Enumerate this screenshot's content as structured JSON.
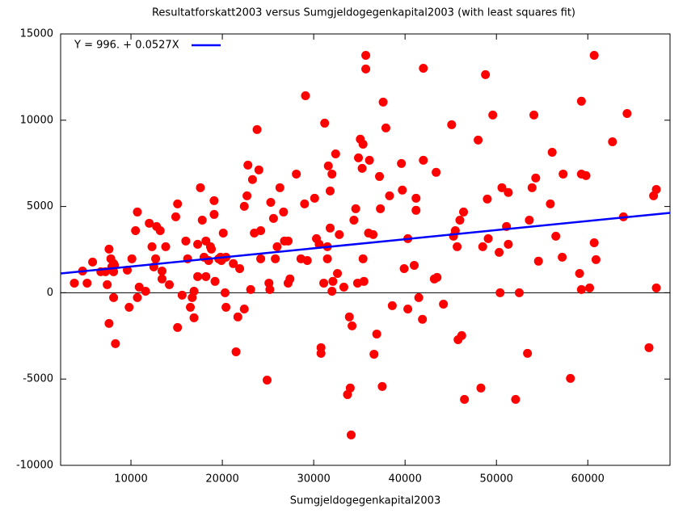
{
  "chart_data": {
    "type": "scatter",
    "title": "Resultatforskatt2003 versus Sumgjeldogegenkapital2003 (with least squares fit)",
    "x_label": "Sumgjeldogegenkapital2003",
    "color": "#ff0000",
    "x": [
      3800,
      4700,
      5200,
      5800,
      6700,
      7200,
      7400,
      7600,
      7600,
      7800,
      7900,
      8100,
      8100,
      8200,
      8300,
      8100,
      9600,
      9800,
      10100,
      10500,
      10700,
      10900,
      10700,
      11600,
      12000,
      12300,
      12500,
      12700,
      12800,
      13200,
      13400,
      13400,
      13800,
      14200,
      14900,
      15100,
      15100,
      15600,
      16000,
      16200,
      16500,
      16700,
      16900,
      16900,
      17300,
      17300,
      17600,
      17800,
      18000,
      18200,
      18200,
      18500,
      18700,
      18800,
      19100,
      19100,
      19200,
      19600,
      19800,
      19900,
      20100,
      20300,
      20400,
      20400,
      21200,
      21500,
      21700,
      21900,
      22400,
      22400,
      22700,
      22800,
      23100,
      23300,
      23500,
      23800,
      24000,
      24200,
      24200,
      24900,
      25100,
      25200,
      25300,
      25600,
      25800,
      26000,
      26300,
      26700,
      26800,
      27200,
      27200,
      27400,
      28100,
      28600,
      29000,
      29100,
      29300,
      30100,
      30300,
      30600,
      30800,
      30800,
      31100,
      31200,
      31500,
      31500,
      31600,
      31800,
      31800,
      32000,
      32000,
      32100,
      32400,
      32600,
      32800,
      33300,
      33700,
      33900,
      34000,
      34100,
      34200,
      34400,
      34600,
      34800,
      34900,
      35100,
      35300,
      35400,
      35400,
      35500,
      35700,
      35700,
      36000,
      36100,
      36500,
      36600,
      36900,
      37200,
      37300,
      37500,
      37600,
      37900,
      38300,
      38600,
      39600,
      39700,
      39900,
      40300,
      40300,
      41000,
      41200,
      41200,
      41500,
      41900,
      42000,
      42000,
      43200,
      43400,
      43500,
      44200,
      45100,
      45300,
      45500,
      45700,
      45800,
      46200,
      46000,
      46400,
      46500,
      48000,
      48300,
      48500,
      48800,
      49000,
      49100,
      49600,
      50300,
      50400,
      50600,
      51100,
      51300,
      51300,
      52100,
      52500,
      53400,
      53600,
      53900,
      54100,
      54300,
      54600,
      55900,
      56100,
      56500,
      57200,
      57300,
      58100,
      59100,
      59300,
      59300,
      59300,
      59800,
      60200,
      60700,
      60700,
      60900,
      62700,
      63900,
      64300,
      66700,
      67200,
      67500,
      67500
    ],
    "values": [
      560,
      1260,
      560,
      1780,
      1220,
      1220,
      470,
      2530,
      -1780,
      1970,
      1500,
      1220,
      1690,
      1590,
      -2950,
      -280,
      1310,
      -840,
      1970,
      3600,
      4680,
      330,
      -280,
      90,
      4030,
      2670,
      1500,
      1970,
      3840,
      3600,
      1260,
      800,
      2670,
      470,
      4400,
      5150,
      -2010,
      -140,
      3000,
      1970,
      -840,
      -280,
      90,
      -1450,
      940,
      2810,
      6090,
      4210,
      2060,
      3000,
      940,
      1870,
      2670,
      2530,
      5340,
      4540,
      660,
      1970,
      2060,
      1870,
      3460,
      0,
      2060,
      -840,
      1690,
      -3420,
      -1400,
      1400,
      -940,
      5010,
      5620,
      7400,
      190,
      6560,
      3460,
      9460,
      7120,
      1970,
      3600,
      -5060,
      560,
      190,
      5240,
      4310,
      1970,
      2670,
      6090,
      4680,
      3000,
      560,
      3000,
      800,
      6880,
      1970,
      5150,
      11420,
      1870,
      5480,
      3140,
      2810,
      -3180,
      -3510,
      560,
      9830,
      2670,
      1970,
      7350,
      5900,
      3750,
      6880,
      90,
      660,
      8050,
      1120,
      3370,
      330,
      -5900,
      -1400,
      -5520,
      -8240,
      -1920,
      4210,
      4870,
      560,
      7820,
      8900,
      7210,
      8610,
      1970,
      660,
      12970,
      13760,
      3460,
      7680,
      3370,
      -3560,
      -2390,
      6740,
      4870,
      -5430,
      11050,
      9550,
      5620,
      -750,
      7490,
      5950,
      1400,
      3140,
      -940,
      1590,
      5480,
      4780,
      -280,
      -1540,
      13010,
      7680,
      800,
      6980,
      890,
      -660,
      9740,
      3280,
      3600,
      2670,
      -2720,
      -2480,
      4210,
      4680,
      -6180,
      8850,
      -5520,
      2670,
      12640,
      5430,
      3140,
      10300,
      2340,
      0,
      6090,
      3840,
      5810,
      2810,
      -6180,
      0,
      -3510,
      4210,
      6090,
      10300,
      6650,
      1830,
      5150,
      8140,
      3280,
      2060,
      6880,
      -4960,
      1120,
      190,
      11100,
      6880,
      6790,
      280,
      13760,
      2900,
      1920,
      8750,
      4400,
      10390,
      -3180,
      5620,
      5990,
      280
    ],
    "fit": {
      "label": "Y = 996. + 0.0527X",
      "intercept": 996,
      "slope": 0.0527,
      "color": "#0000ff"
    },
    "xlim": [
      2300,
      69000
    ],
    "ylim": [
      -10000,
      15000
    ],
    "xticks": [
      10000,
      20000,
      30000,
      40000,
      50000,
      60000
    ],
    "yticks": [
      -10000,
      -5000,
      0,
      5000,
      10000,
      15000
    ],
    "zero_axis": true
  }
}
